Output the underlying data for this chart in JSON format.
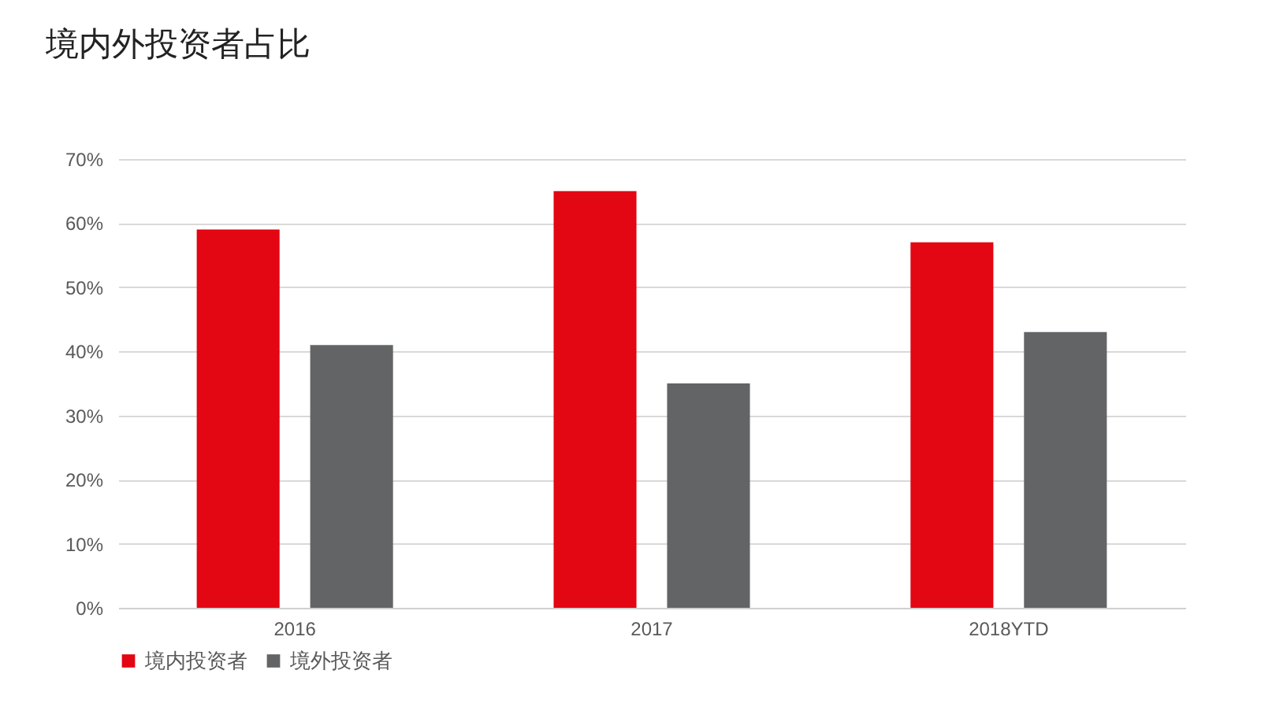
{
  "chart_data": {
    "type": "bar",
    "title": "境内外投资者占比",
    "categories": [
      "2016",
      "2017",
      "2018YTD"
    ],
    "series": [
      {
        "name": "境内投资者",
        "color": "#e30613",
        "values": [
          59,
          65,
          57
        ]
      },
      {
        "name": "境外投资者",
        "color": "#636466",
        "values": [
          41,
          35,
          43
        ]
      }
    ],
    "ylim": [
      0,
      70
    ],
    "yticks": [
      {
        "value": 0,
        "label": "0%"
      },
      {
        "value": 10,
        "label": "10%"
      },
      {
        "value": 20,
        "label": "20%"
      },
      {
        "value": 30,
        "label": "30%"
      },
      {
        "value": 40,
        "label": "40%"
      },
      {
        "value": 50,
        "label": "50%"
      },
      {
        "value": 60,
        "label": "60%"
      },
      {
        "value": 70,
        "label": "70%"
      }
    ],
    "grid": "y",
    "legend": "bottom"
  }
}
